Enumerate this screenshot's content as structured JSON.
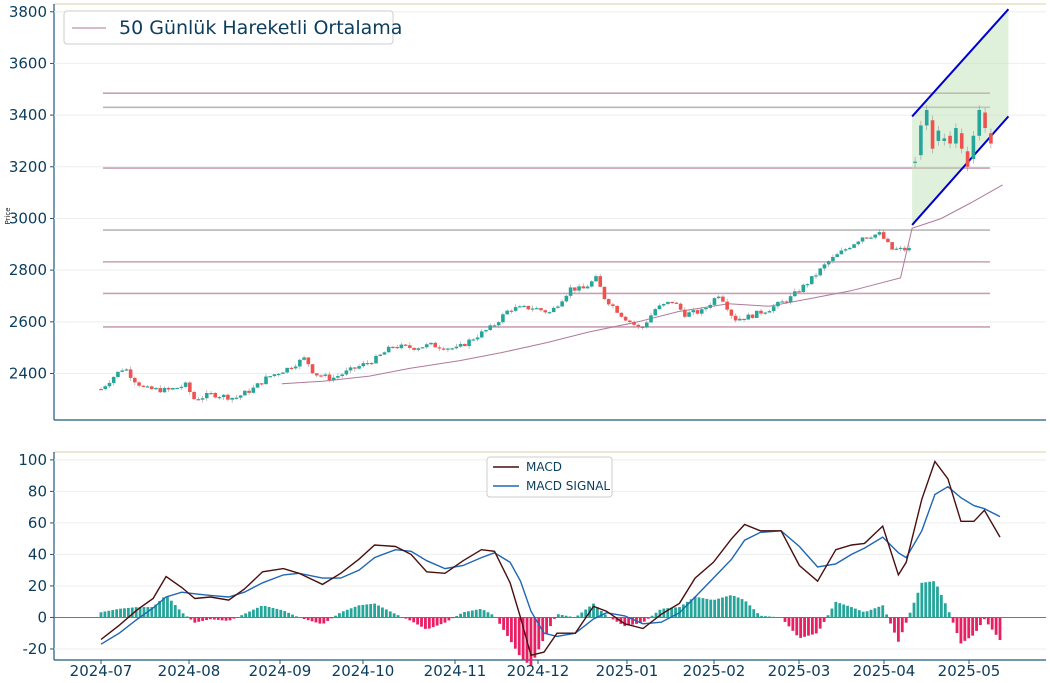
{
  "colors": {
    "up": "#26a69a",
    "down": "#ef5350",
    "ma": "#b07a9a",
    "macd": "#4a0f0f",
    "signal": "#1f66b5",
    "hist_pos": "#26a69a",
    "hist_neg": "#e91e63",
    "hline_light": "#c9a0b4",
    "hline_gray": "#b8b8b8",
    "channel": "#0000cc",
    "channel_fill": "#b7deb0",
    "axis": "#1d5a7a",
    "topline": "#d8d0a8"
  },
  "chart_data": [
    {
      "type": "candlestick",
      "ylabel": "Price",
      "ylim": [
        2220,
        3830
      ],
      "yticks": [
        2400,
        2600,
        2800,
        3000,
        3200,
        3400,
        3600,
        3800
      ],
      "legend": {
        "position": "top-left",
        "entries": [
          "50 Günlük Hareketli Ortalama"
        ]
      },
      "x_start": "2024-07-01",
      "x_end": "2025-05-06",
      "price_path": [
        [
          "2024-07-01",
          2340
        ],
        [
          "2024-07-05",
          2385
        ],
        [
          "2024-07-09",
          2425
        ],
        [
          "2024-07-12",
          2380
        ],
        [
          "2024-07-16",
          2340
        ],
        [
          "2024-07-24",
          2335
        ],
        [
          "2024-07-30",
          2355
        ],
        [
          "2024-08-02",
          2300
        ],
        [
          "2024-08-08",
          2320
        ],
        [
          "2024-08-16",
          2305
        ],
        [
          "2024-08-22",
          2340
        ],
        [
          "2024-08-27",
          2385
        ],
        [
          "2024-09-03",
          2420
        ],
        [
          "2024-09-09",
          2460
        ],
        [
          "2024-09-12",
          2400
        ],
        [
          "2024-09-18",
          2380
        ],
        [
          "2024-09-26",
          2420
        ],
        [
          "2024-10-03",
          2455
        ],
        [
          "2024-10-09",
          2505
        ],
        [
          "2024-10-16",
          2500
        ],
        [
          "2024-10-22",
          2510
        ],
        [
          "2024-10-31",
          2495
        ],
        [
          "2024-11-06",
          2540
        ],
        [
          "2024-11-12",
          2580
        ],
        [
          "2024-11-18",
          2650
        ],
        [
          "2024-11-26",
          2655
        ],
        [
          "2024-12-02",
          2635
        ],
        [
          "2024-12-09",
          2730
        ],
        [
          "2024-12-13",
          2725
        ],
        [
          "2024-12-18",
          2770
        ],
        [
          "2024-12-20",
          2700
        ],
        [
          "2024-12-27",
          2620
        ],
        [
          "2025-01-02",
          2570
        ],
        [
          "2025-01-07",
          2650
        ],
        [
          "2025-01-13",
          2680
        ],
        [
          "2025-01-17",
          2630
        ],
        [
          "2025-01-23",
          2640
        ],
        [
          "2025-01-29",
          2710
        ],
        [
          "2025-02-03",
          2610
        ],
        [
          "2025-02-08",
          2620
        ],
        [
          "2025-02-15",
          2650
        ],
        [
          "2025-02-22",
          2690
        ],
        [
          "2025-03-01",
          2760
        ],
        [
          "2025-03-07",
          2830
        ],
        [
          "2025-03-13",
          2880
        ],
        [
          "2025-03-19",
          2930
        ],
        [
          "2025-03-25",
          2940
        ],
        [
          "2025-03-29",
          2880
        ],
        [
          "2025-04-04",
          2880
        ],
        [
          "2025-04-10",
          2900
        ],
        [
          "2025-04-15",
          3020
        ],
        [
          "2025-04-20",
          3040
        ],
        [
          "2025-04-25",
          3060
        ],
        [
          "2025-04-29",
          3130
        ],
        [
          "2025-05-01",
          3050
        ],
        [
          "2025-05-03",
          2960
        ],
        [
          "2025-05-06",
          3010
        ]
      ],
      "ma50": [
        [
          "2024-09-01",
          2360
        ],
        [
          "2024-09-15",
          2370
        ],
        [
          "2024-10-01",
          2390
        ],
        [
          "2024-10-15",
          2420
        ],
        [
          "2024-11-01",
          2450
        ],
        [
          "2024-11-15",
          2480
        ],
        [
          "2024-12-01",
          2520
        ],
        [
          "2024-12-15",
          2560
        ],
        [
          "2025-01-01",
          2600
        ],
        [
          "2025-01-15",
          2640
        ],
        [
          "2025-02-01",
          2670
        ],
        [
          "2025-02-15",
          2660
        ],
        [
          "2025-03-01",
          2690
        ],
        [
          "2025-03-15",
          2720
        ],
        [
          "2025-04-01",
          2770
        ],
        [
          "2025-04-15",
          2830
        ],
        [
          "2025-05-01",
          2900
        ],
        [
          "2025-05-06",
          2950
        ]
      ],
      "ma50_tail": [
        [
          "2025-04-05",
          2962
        ],
        [
          "2025-04-15",
          3000
        ],
        [
          "2025-04-25",
          3060
        ],
        [
          "2025-05-06",
          3130
        ]
      ],
      "hlines": [
        3485,
        3430,
        3195,
        2955,
        2832,
        2710,
        2580
      ],
      "channel": {
        "upper": [
          [
            "2025-04-05",
            3395
          ],
          [
            "2025-05-08",
            3810
          ]
        ],
        "lower": [
          [
            "2025-04-05",
            2975
          ],
          [
            "2025-05-08",
            3395
          ]
        ]
      },
      "late_candles": [
        [
          "2025-04-06",
          3215,
          3220
        ],
        [
          "2025-04-08",
          3245,
          3360
        ],
        [
          "2025-04-10",
          3360,
          3420
        ],
        [
          "2025-04-12",
          3380,
          3270
        ],
        [
          "2025-04-14",
          3300,
          3340
        ],
        [
          "2025-04-16",
          3300,
          3310
        ],
        [
          "2025-04-18",
          3320,
          3290
        ],
        [
          "2025-04-20",
          3290,
          3350
        ],
        [
          "2025-04-22",
          3330,
          3270
        ],
        [
          "2025-04-24",
          3260,
          3200
        ],
        [
          "2025-04-26",
          3230,
          3320
        ],
        [
          "2025-04-28",
          3320,
          3420
        ],
        [
          "2025-04-30",
          3410,
          3350
        ],
        [
          "2025-05-02",
          3330,
          3290
        ]
      ]
    },
    {
      "type": "line",
      "ylim": [
        -27,
        105
      ],
      "yticks": [
        -20,
        0,
        20,
        40,
        60,
        80,
        100
      ],
      "xticks": [
        "2024-07",
        "2024-08",
        "2024-09",
        "2024-10",
        "2024-11",
        "2024-12",
        "2025-01",
        "2025-02",
        "2025-03",
        "2025-04",
        "2025-05"
      ],
      "legend": {
        "position": "top-center",
        "entries": [
          "MACD",
          "MACD SIGNAL"
        ]
      },
      "series": [
        {
          "name": "MACD",
          "points": [
            [
              "2024-07-01",
              -14
            ],
            [
              "2024-07-08",
              -5
            ],
            [
              "2024-07-15",
              5
            ],
            [
              "2024-07-21",
              12
            ],
            [
              "2024-07-26",
              26
            ],
            [
              "2024-08-01",
              19
            ],
            [
              "2024-08-06",
              12
            ],
            [
              "2024-08-12",
              13
            ],
            [
              "2024-08-19",
              11
            ],
            [
              "2024-08-25",
              18
            ],
            [
              "2024-09-01",
              29
            ],
            [
              "2024-09-09",
              31
            ],
            [
              "2024-09-15",
              28
            ],
            [
              "2024-09-24",
              21
            ],
            [
              "2024-10-01",
              28
            ],
            [
              "2024-10-08",
              37
            ],
            [
              "2024-10-14",
              46
            ],
            [
              "2024-10-22",
              45
            ],
            [
              "2024-10-28",
              40
            ],
            [
              "2024-11-03",
              29
            ],
            [
              "2024-11-10",
              28
            ],
            [
              "2024-11-17",
              36
            ],
            [
              "2024-11-24",
              43
            ],
            [
              "2024-11-29",
              42
            ],
            [
              "2024-12-05",
              22
            ],
            [
              "2024-12-09",
              0
            ],
            [
              "2024-12-13",
              -24
            ],
            [
              "2024-12-18",
              -22
            ],
            [
              "2024-12-23",
              -10
            ],
            [
              "2024-12-30",
              -10
            ],
            [
              "2025-01-06",
              7
            ],
            [
              "2025-01-11",
              4
            ],
            [
              "2025-01-18",
              -4
            ],
            [
              "2025-01-25",
              -7
            ],
            [
              "2025-02-01",
              2
            ],
            [
              "2025-02-08",
              9
            ],
            [
              "2025-02-14",
              25
            ],
            [
              "2025-02-21",
              35
            ],
            [
              "2025-02-28",
              50
            ],
            [
              "2025-03-05",
              59
            ],
            [
              "2025-03-11",
              55
            ],
            [
              "2025-03-19",
              55
            ],
            [
              "2025-03-26",
              33
            ],
            [
              "2025-04-02",
              23
            ],
            [
              "2025-04-09",
              43
            ],
            [
              "2025-04-15",
              46
            ],
            [
              "2025-04-20",
              47
            ],
            [
              "2025-04-27",
              58
            ],
            [
              "2025-05-03",
              27
            ],
            [
              "2025-05-06",
              35
            ],
            [
              "2025-05-12",
              75
            ],
            [
              "2025-05-17",
              99
            ],
            [
              "2025-05-22",
              88
            ],
            [
              "2025-05-27",
              61
            ],
            [
              "2025-06-01",
              61
            ],
            [
              "2025-06-05",
              68
            ],
            [
              "2025-06-11",
              51
            ]
          ]
        },
        {
          "name": "MACD SIGNAL",
          "points": [
            [
              "2024-07-01",
              -17
            ],
            [
              "2024-07-08",
              -10
            ],
            [
              "2024-07-15",
              -1
            ],
            [
              "2024-07-21",
              6
            ],
            [
              "2024-07-26",
              13
            ],
            [
              "2024-08-01",
              16
            ],
            [
              "2024-08-06",
              15
            ],
            [
              "2024-08-12",
              14
            ],
            [
              "2024-08-19",
              13
            ],
            [
              "2024-08-25",
              16
            ],
            [
              "2024-09-01",
              22
            ],
            [
              "2024-09-09",
              27
            ],
            [
              "2024-09-15",
              28
            ],
            [
              "2024-09-24",
              25
            ],
            [
              "2024-10-01",
              25
            ],
            [
              "2024-10-08",
              30
            ],
            [
              "2024-10-14",
              38
            ],
            [
              "2024-10-22",
              43
            ],
            [
              "2024-10-28",
              42
            ],
            [
              "2024-11-03",
              36
            ],
            [
              "2024-11-10",
              31
            ],
            [
              "2024-11-17",
              33
            ],
            [
              "2024-11-24",
              38
            ],
            [
              "2024-11-29",
              41
            ],
            [
              "2024-12-05",
              35
            ],
            [
              "2024-12-09",
              23
            ],
            [
              "2024-12-13",
              4
            ],
            [
              "2024-12-18",
              -10
            ],
            [
              "2024-12-23",
              -12
            ],
            [
              "2024-12-30",
              -10
            ],
            [
              "2025-01-06",
              -1
            ],
            [
              "2025-01-11",
              3
            ],
            [
              "2025-01-18",
              1
            ],
            [
              "2025-01-25",
              -4
            ],
            [
              "2025-02-01",
              -3
            ],
            [
              "2025-02-08",
              3
            ],
            [
              "2025-02-14",
              13
            ],
            [
              "2025-02-21",
              25
            ],
            [
              "2025-02-28",
              37
            ],
            [
              "2025-03-05",
              49
            ],
            [
              "2025-03-11",
              54
            ],
            [
              "2025-03-19",
              55
            ],
            [
              "2025-03-26",
              45
            ],
            [
              "2025-04-02",
              32
            ],
            [
              "2025-04-09",
              34
            ],
            [
              "2025-04-15",
              40
            ],
            [
              "2025-04-20",
              44
            ],
            [
              "2025-04-27",
              51
            ],
            [
              "2025-05-03",
              41
            ],
            [
              "2025-05-06",
              38
            ],
            [
              "2025-05-12",
              55
            ],
            [
              "2025-05-17",
              78
            ],
            [
              "2025-05-22",
              83
            ],
            [
              "2025-05-27",
              76
            ],
            [
              "2025-06-01",
              71
            ],
            [
              "2025-06-05",
              69
            ],
            [
              "2025-06-11",
              64
            ]
          ]
        }
      ]
    }
  ]
}
